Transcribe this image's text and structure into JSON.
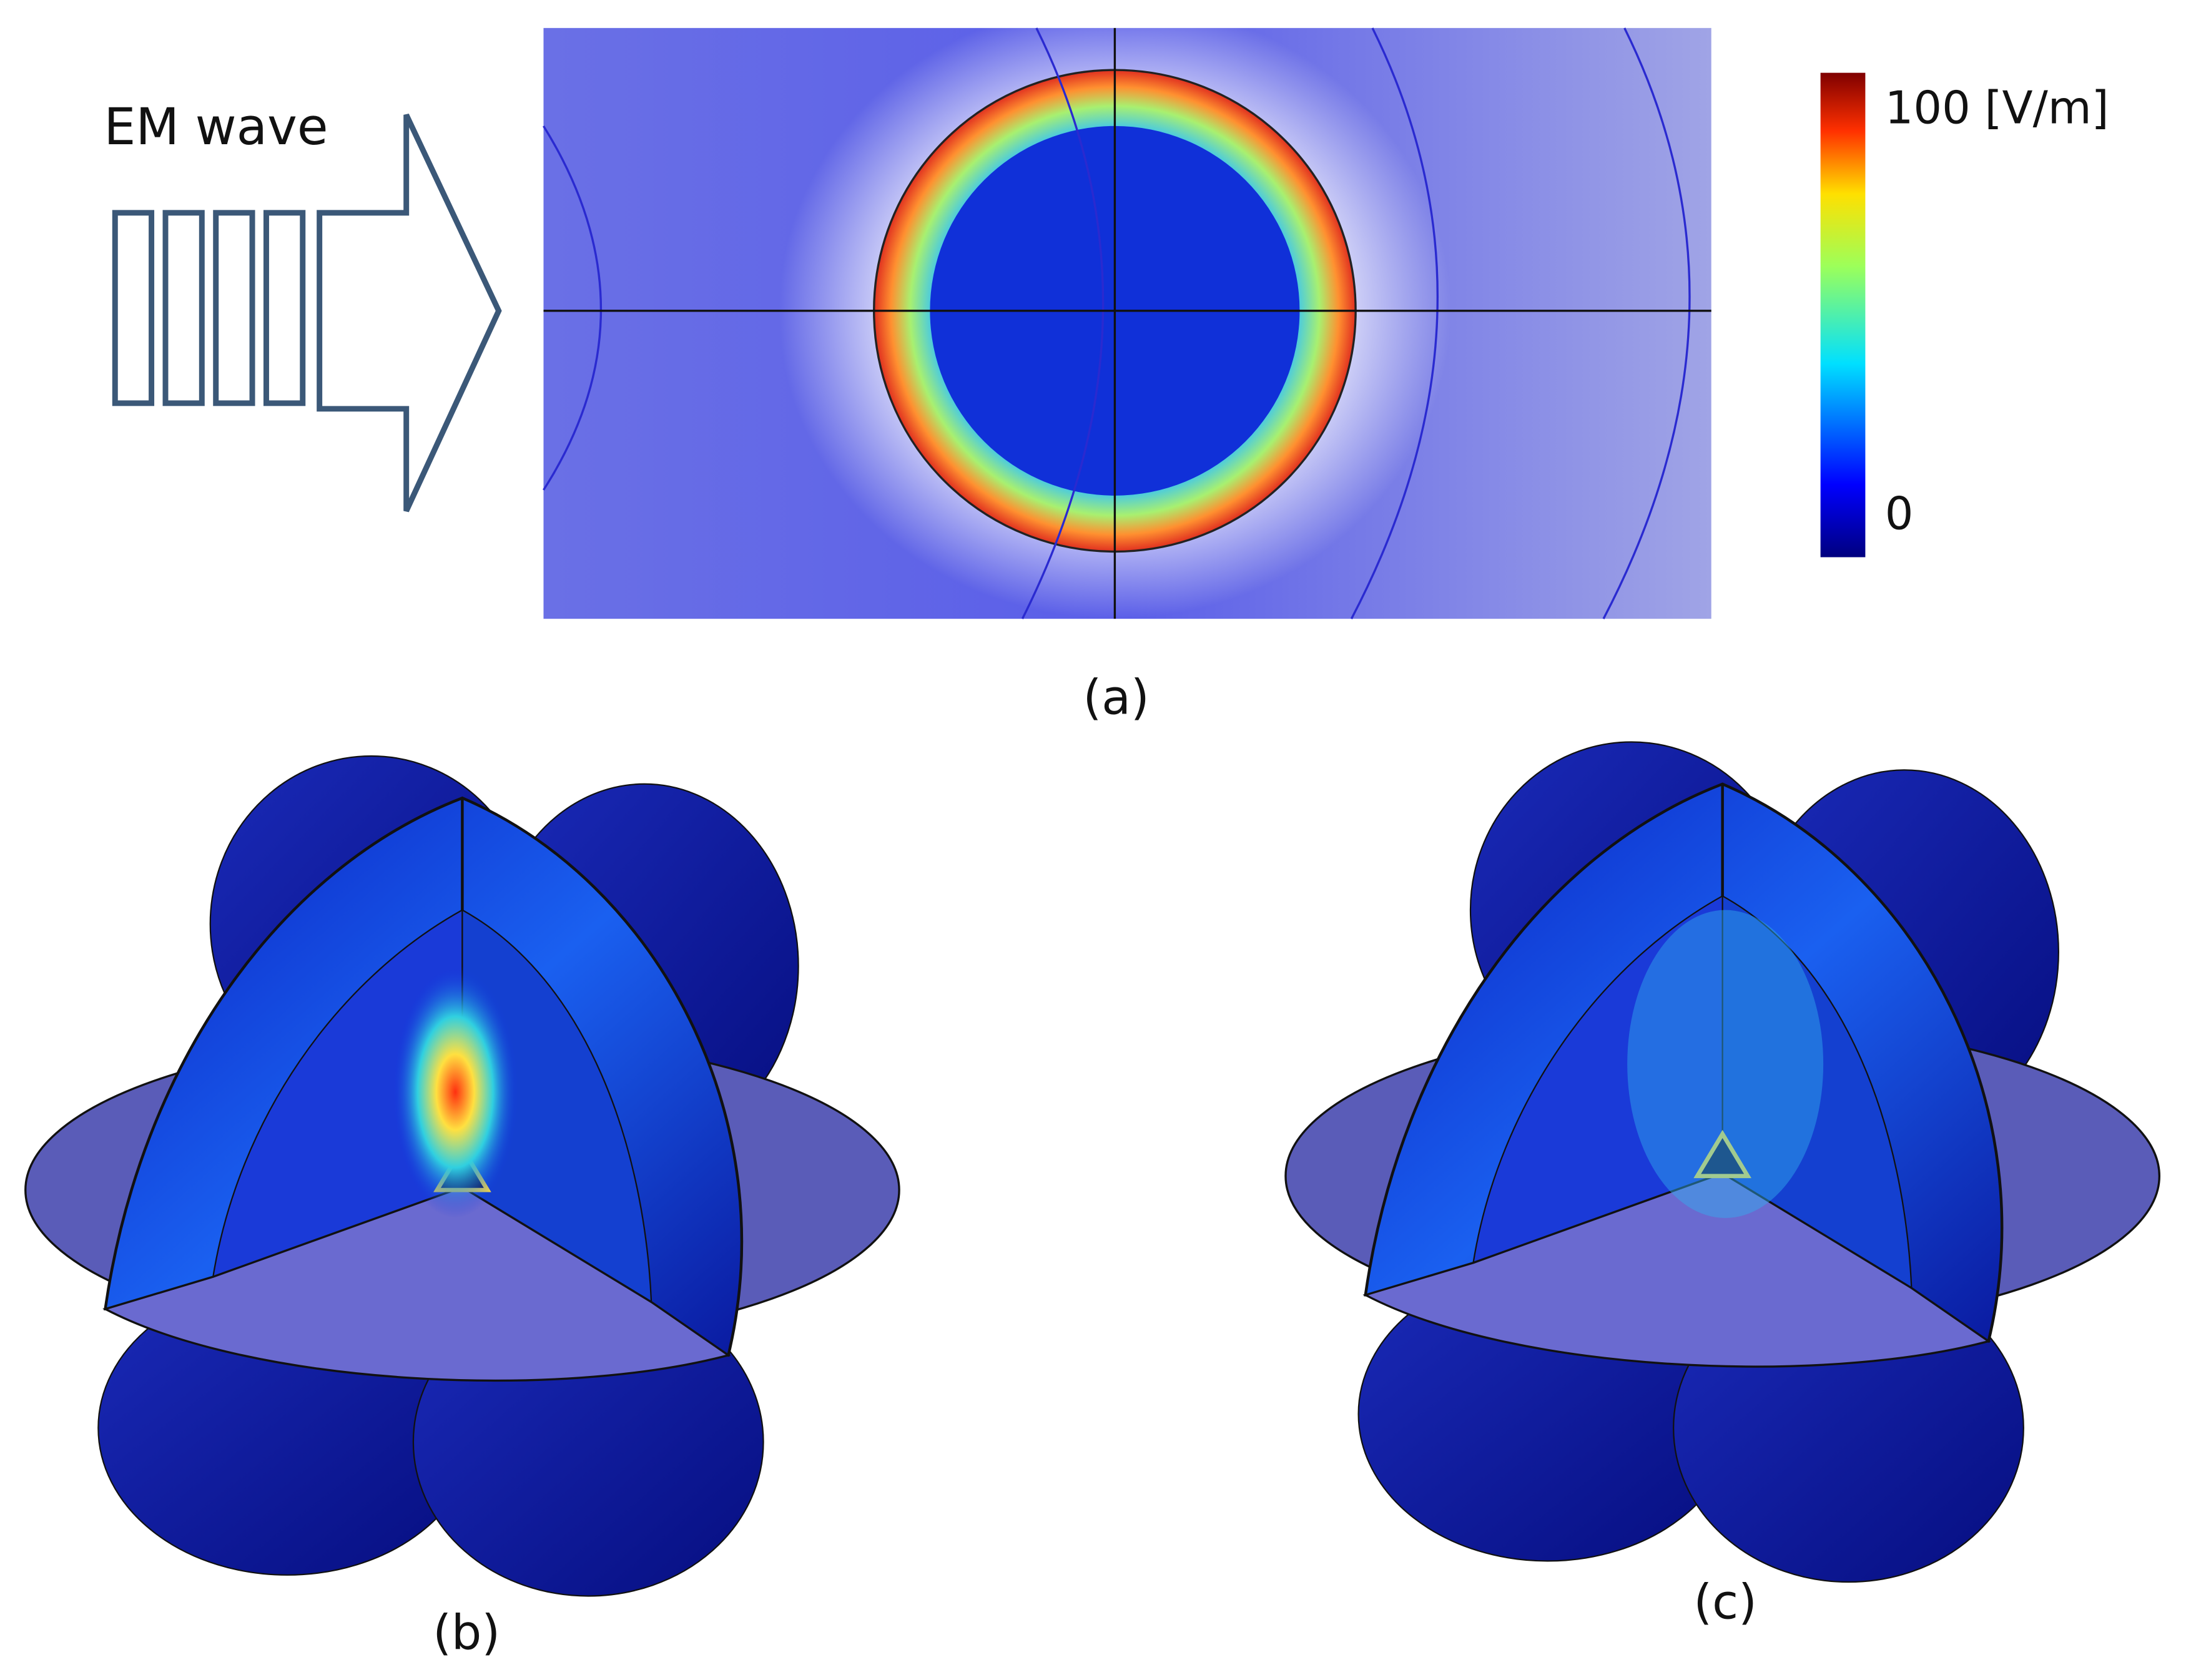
{
  "panel_a": {
    "arrow_label": "EM wave",
    "colorbar": {
      "max_label": "100 [V/m]",
      "min_label": "0"
    },
    "label": "(a)"
  },
  "panel_b": {
    "label": "(b)"
  },
  "panel_c": {
    "label": "(c)"
  }
}
